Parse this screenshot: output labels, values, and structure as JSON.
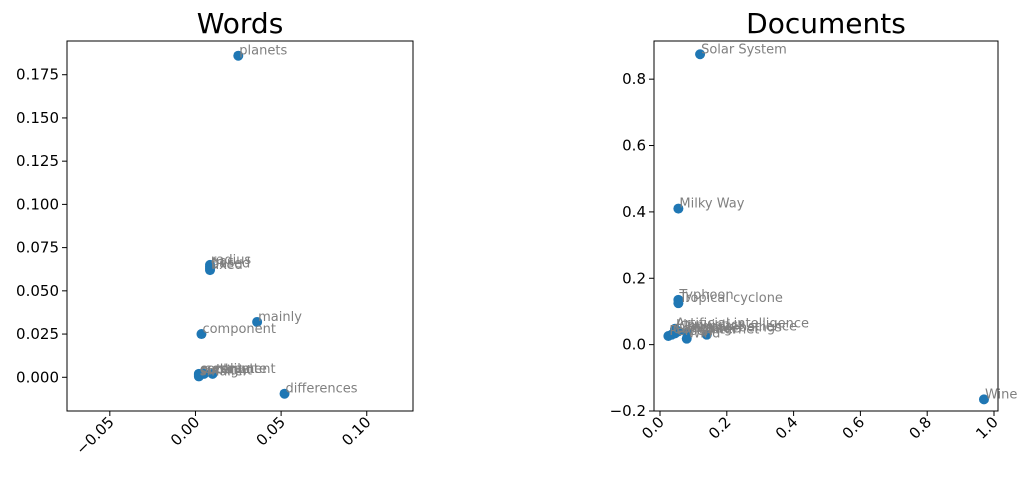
{
  "chart_data": [
    {
      "type": "scatter",
      "title": "Words",
      "xlim": [
        -0.075,
        0.127
      ],
      "ylim": [
        -0.0195,
        0.1945
      ],
      "xticks": [
        {
          "value": -0.05,
          "label": "−0.05"
        },
        {
          "value": 0.0,
          "label": "0.00"
        },
        {
          "value": 0.05,
          "label": "0.05"
        },
        {
          "value": 0.1,
          "label": "0.10"
        }
      ],
      "yticks": [
        {
          "value": 0.0,
          "label": "0.000"
        },
        {
          "value": 0.025,
          "label": "0.025"
        },
        {
          "value": 0.05,
          "label": "0.050"
        },
        {
          "value": 0.075,
          "label": "0.075"
        },
        {
          "value": 0.1,
          "label": "0.100"
        },
        {
          "value": 0.125,
          "label": "0.125"
        },
        {
          "value": 0.15,
          "label": "0.150"
        },
        {
          "value": 0.175,
          "label": "0.175"
        }
      ],
      "points": [
        {
          "x": 0.025,
          "y": 0.186,
          "label": "planets"
        },
        {
          "x": 0.0085,
          "y": 0.065,
          "label": "radius"
        },
        {
          "x": 0.0085,
          "y": 0.064,
          "label": "gas"
        },
        {
          "x": 0.0085,
          "y": 0.063,
          "label": "based"
        },
        {
          "x": 0.0085,
          "y": 0.062,
          "label": "fixed"
        },
        {
          "x": 0.036,
          "y": 0.032,
          "label": "mainly"
        },
        {
          "x": 0.0035,
          "y": 0.025,
          "label": "component"
        },
        {
          "x": 0.052,
          "y": -0.0095,
          "label": "differences"
        },
        {
          "x": 0.002,
          "y": 0.002,
          "label": "contribute"
        },
        {
          "x": 0.005,
          "y": 0.002,
          "label": "settlement"
        },
        {
          "x": 0.01,
          "y": 0.002,
          "label": "comet"
        },
        {
          "x": 0.002,
          "y": 0.0015,
          "label": "outer"
        },
        {
          "x": 0.002,
          "y": 0.001,
          "label": "sunlight"
        },
        {
          "x": 0.002,
          "y": 0.0005,
          "label": "smaller"
        }
      ]
    },
    {
      "type": "scatter",
      "title": "Documents",
      "xlim": [
        -0.018,
        1.012
      ],
      "ylim": [
        -0.2,
        0.915
      ],
      "xticks": [
        {
          "value": 0.0,
          "label": "0.0"
        },
        {
          "value": 0.2,
          "label": "0.2"
        },
        {
          "value": 0.4,
          "label": "0.4"
        },
        {
          "value": 0.6,
          "label": "0.6"
        },
        {
          "value": 0.8,
          "label": "0.8"
        },
        {
          "value": 1.0,
          "label": "1.0"
        }
      ],
      "yticks": [
        {
          "value": -0.2,
          "label": "−0.2"
        },
        {
          "value": 0.0,
          "label": "0.0"
        },
        {
          "value": 0.2,
          "label": "0.2"
        },
        {
          "value": 0.4,
          "label": "0.4"
        },
        {
          "value": 0.6,
          "label": "0.6"
        },
        {
          "value": 0.8,
          "label": "0.8"
        }
      ],
      "points": [
        {
          "x": 0.12,
          "y": 0.875,
          "label": "Solar System"
        },
        {
          "x": 0.055,
          "y": 0.41,
          "label": "Milky Way"
        },
        {
          "x": 0.055,
          "y": 0.135,
          "label": "Typhoon"
        },
        {
          "x": 0.055,
          "y": 0.125,
          "label": "Tropical cyclone"
        },
        {
          "x": 0.045,
          "y": 0.048,
          "label": "Artificial intelligence"
        },
        {
          "x": 0.045,
          "y": 0.044,
          "label": "Linguistics"
        },
        {
          "x": 0.055,
          "y": 0.04,
          "label": "Computer science"
        },
        {
          "x": 0.08,
          "y": 0.036,
          "label": "Human beings"
        },
        {
          "x": 0.045,
          "y": 0.034,
          "label": "Language"
        },
        {
          "x": 0.035,
          "y": 0.03,
          "label": "Computer"
        },
        {
          "x": 0.14,
          "y": 0.03,
          "label": "Internet"
        },
        {
          "x": 0.025,
          "y": 0.026,
          "label": "Person"
        },
        {
          "x": 0.08,
          "y": 0.018,
          "label": "Wind"
        },
        {
          "x": 0.97,
          "y": -0.165,
          "label": "Wine"
        }
      ]
    }
  ]
}
